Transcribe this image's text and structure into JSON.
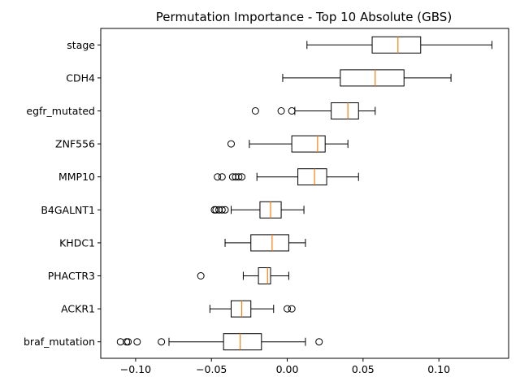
{
  "chart_data": {
    "type": "boxplot",
    "orientation": "horizontal",
    "title": "Permutation Importance - Top 10 Absolute (GBS)",
    "xlabel": "",
    "ylabel": "",
    "xlim": [
      -0.123,
      0.146
    ],
    "xticks": [
      -0.1,
      -0.05,
      0.0,
      0.05,
      0.1
    ],
    "xtick_labels": [
      "−0.10",
      "−0.05",
      "0.00",
      "0.05",
      "0.10"
    ],
    "grid": false,
    "colors": {
      "box": "#000000",
      "median": "#ff7f0e",
      "flier": "#000000"
    },
    "categories": [
      "stage",
      "CDH4",
      "egfr_mutated",
      "ZNF556",
      "MMP10",
      "B4GALNT1",
      "KHDC1",
      "PHACTR3",
      "ACKR1",
      "braf_mutation"
    ],
    "boxes": [
      {
        "label": "stage",
        "whisker_low": 0.013,
        "q1": 0.056,
        "median": 0.073,
        "q3": 0.088,
        "whisker_high": 0.135,
        "fliers": []
      },
      {
        "label": "CDH4",
        "whisker_low": -0.003,
        "q1": 0.035,
        "median": 0.058,
        "q3": 0.077,
        "whisker_high": 0.108,
        "fliers": []
      },
      {
        "label": "egfr_mutated",
        "whisker_low": 0.005,
        "q1": 0.029,
        "median": 0.04,
        "q3": 0.047,
        "whisker_high": 0.058,
        "fliers": [
          -0.021,
          -0.004,
          0.003
        ]
      },
      {
        "label": "ZNF556",
        "whisker_low": -0.025,
        "q1": 0.003,
        "median": 0.02,
        "q3": 0.025,
        "whisker_high": 0.04,
        "fliers": [
          -0.037
        ]
      },
      {
        "label": "MMP10",
        "whisker_low": -0.02,
        "q1": 0.007,
        "median": 0.018,
        "q3": 0.026,
        "whisker_high": 0.047,
        "fliers": [
          -0.046,
          -0.043,
          -0.036,
          -0.034,
          -0.032,
          -0.03
        ]
      },
      {
        "label": "B4GALNT1",
        "whisker_low": -0.037,
        "q1": -0.018,
        "median": -0.011,
        "q3": -0.004,
        "whisker_high": 0.011,
        "fliers": [
          -0.048,
          -0.047,
          -0.045,
          -0.043,
          -0.041
        ]
      },
      {
        "label": "KHDC1",
        "whisker_low": -0.041,
        "q1": -0.024,
        "median": -0.01,
        "q3": 0.001,
        "whisker_high": 0.012,
        "fliers": []
      },
      {
        "label": "PHACTR3",
        "whisker_low": -0.029,
        "q1": -0.019,
        "median": -0.013,
        "q3": -0.011,
        "whisker_high": 0.001,
        "fliers": [
          -0.057
        ]
      },
      {
        "label": "ACKR1",
        "whisker_low": -0.051,
        "q1": -0.037,
        "median": -0.03,
        "q3": -0.024,
        "whisker_high": -0.009,
        "fliers": [
          0.0,
          0.003
        ]
      },
      {
        "label": "braf_mutation",
        "whisker_low": -0.078,
        "q1": -0.042,
        "median": -0.031,
        "q3": -0.017,
        "whisker_high": 0.012,
        "fliers": [
          -0.11,
          -0.106,
          -0.105,
          -0.099,
          -0.083,
          0.021
        ]
      }
    ]
  }
}
